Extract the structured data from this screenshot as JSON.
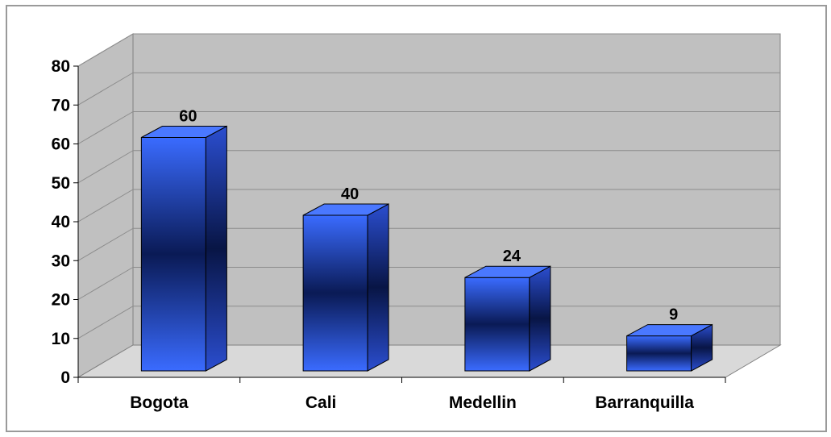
{
  "chart_data": {
    "type": "bar",
    "style": "3d-column",
    "categories": [
      "Bogota",
      "Cali",
      "Medellin",
      "Barranquilla"
    ],
    "values": [
      60,
      40,
      24,
      9
    ],
    "data_labels": [
      "60",
      "40",
      "24",
      "9"
    ],
    "ylim": [
      0,
      80
    ],
    "yticks": [
      "0",
      "10",
      "20",
      "30",
      "40",
      "50",
      "60",
      "70",
      "80"
    ],
    "grid": true,
    "legend": "none",
    "colors": {
      "bar_front_light": "#3a6bff",
      "bar_front_dark": "#0a1a55",
      "bar_side": "#2b4ed0",
      "bar_top": "#4a78ff",
      "wall": "#c0c0c0",
      "floor": "#d9d9d9",
      "grid": "#8c8c8c"
    }
  }
}
